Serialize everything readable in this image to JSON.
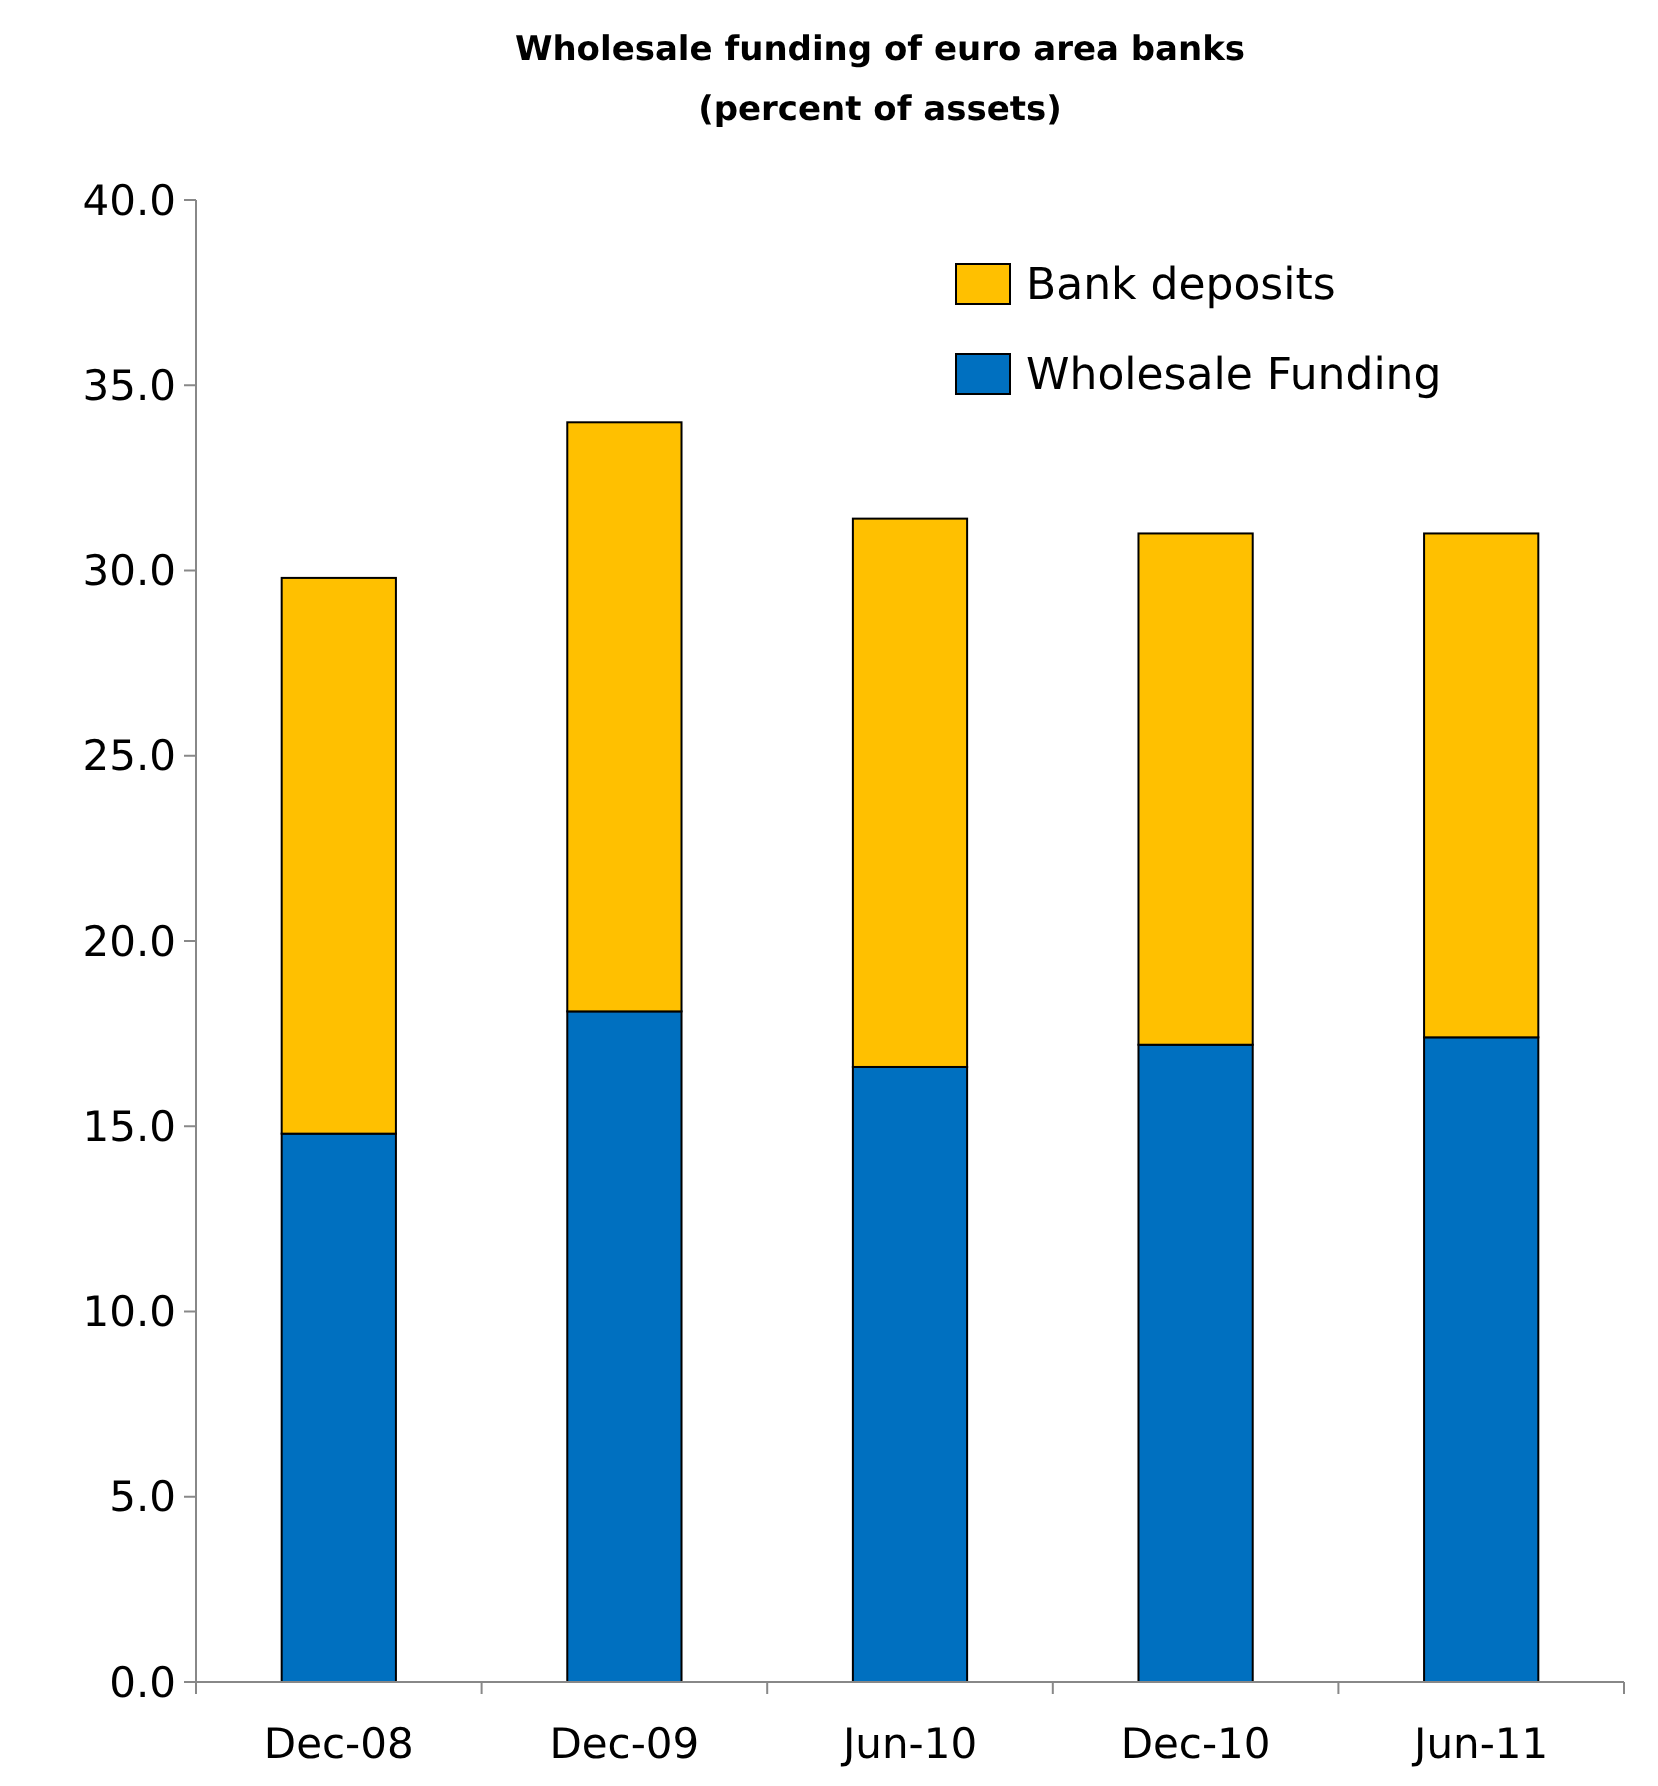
{
  "chart_data": {
    "type": "bar",
    "title": "Wholesale funding  of euro area banks",
    "subtitle": "(percent of assets)",
    "categories": [
      "Dec-08",
      "Dec-09",
      "Jun-10",
      "Dec-10",
      "Jun-11"
    ],
    "stacked": true,
    "series": [
      {
        "name": "Wholesale Funding",
        "color": "#0070c0",
        "values": [
          14.8,
          18.1,
          16.6,
          17.2,
          17.4
        ]
      },
      {
        "name": "Bank deposits",
        "color": "#ffc000",
        "values": [
          15.0,
          15.9,
          14.8,
          13.8,
          13.6
        ]
      }
    ],
    "ylim": [
      0,
      40
    ],
    "yticks": [
      {
        "value": 0,
        "label": "0.0"
      },
      {
        "value": 5,
        "label": "5.0"
      },
      {
        "value": 10,
        "label": "10.0"
      },
      {
        "value": 15,
        "label": "15.0"
      },
      {
        "value": 20,
        "label": "20.0"
      },
      {
        "value": 25,
        "label": "25.0"
      },
      {
        "value": 30,
        "label": "30.0"
      },
      {
        "value": 35,
        "label": "35.0"
      },
      {
        "value": 40,
        "label": "40.0"
      }
    ],
    "grid": false,
    "legend": "top right"
  }
}
